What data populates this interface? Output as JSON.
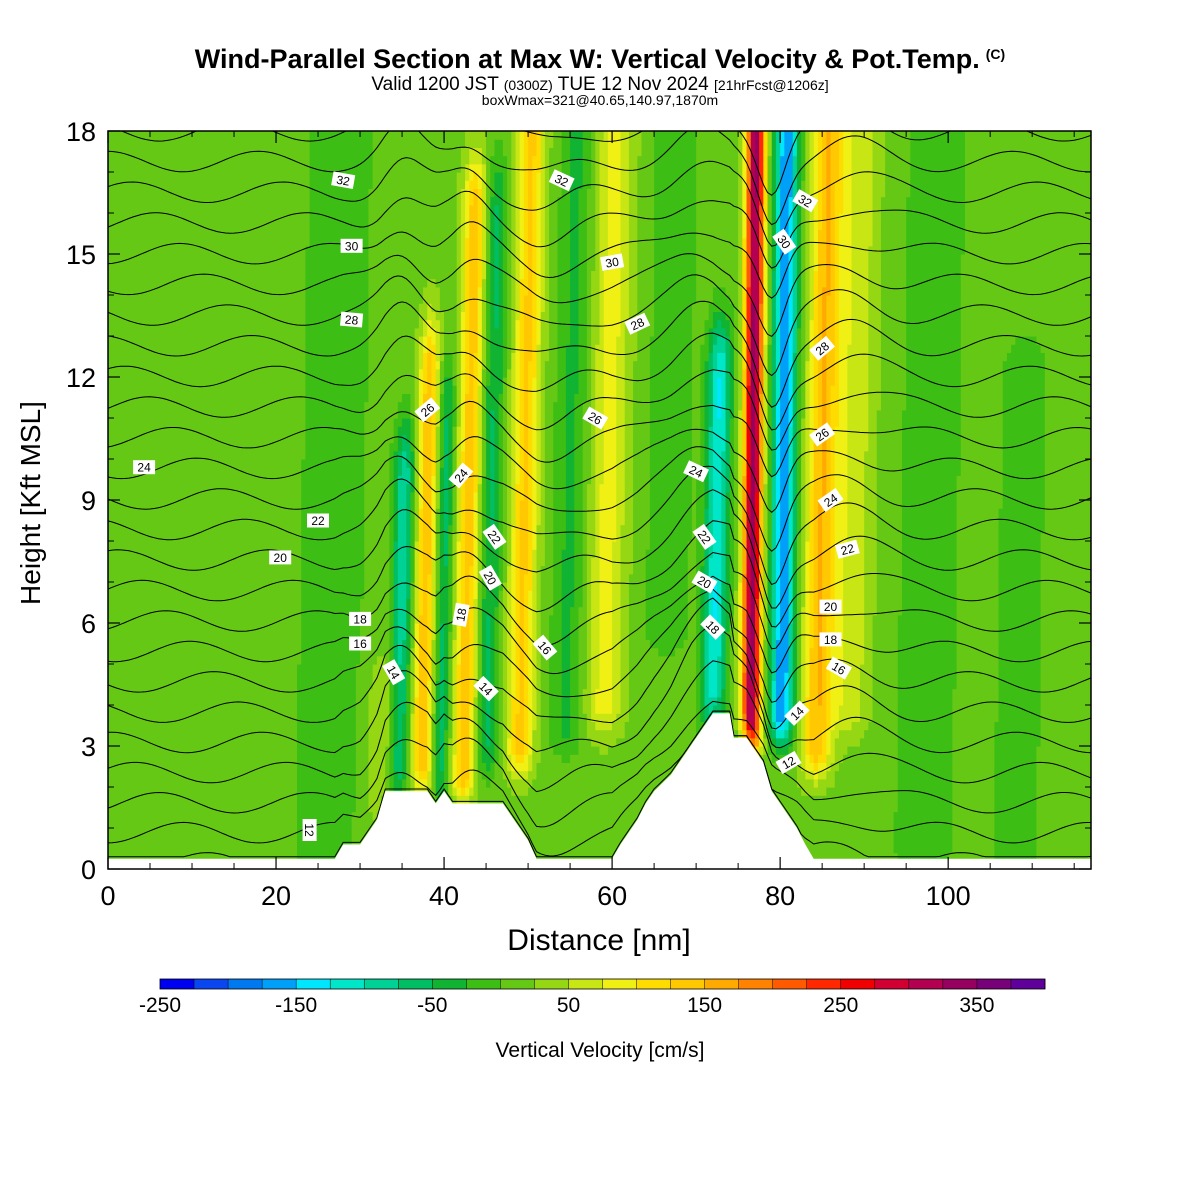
{
  "header": {
    "title": "Wind-Parallel Section at Max W: Vertical Velocity & Pot.Temp.",
    "copyright": "(C)",
    "valid_prefix": "Valid 1200 JST",
    "valid_utc": "(0300Z)",
    "valid_date": "TUE 12 Nov 2024",
    "forecast": "[21hrFcst@1206z]",
    "box_info": "boxWmax=321@40.65,140.97,1870m"
  },
  "chart_data": {
    "type": "heatmap",
    "xlabel": "Distance [nm]",
    "ylabel": "Height [Kft MSL]",
    "xlim": [
      0,
      117
    ],
    "ylim": [
      0,
      18
    ],
    "x_ticks": [
      0,
      20,
      40,
      60,
      80,
      100
    ],
    "y_ticks": [
      0,
      3,
      6,
      9,
      12,
      15,
      18
    ],
    "grid": false,
    "colorbar": {
      "label": "Vertical Velocity [cm/s]",
      "placement": "bottom",
      "min": -250,
      "max": 400,
      "step": 25,
      "tick_labels": [
        "-250",
        "-150",
        "-50",
        "50",
        "150",
        "250",
        "350"
      ],
      "tick_values": [
        -250,
        -150,
        -50,
        50,
        150,
        250,
        350
      ],
      "colors": [
        "#0000f0",
        "#0a46f0",
        "#0078f0",
        "#00a0f8",
        "#00e6ff",
        "#00e6c8",
        "#00d296",
        "#00be64",
        "#10b432",
        "#3cbe14",
        "#64c814",
        "#96d714",
        "#c8e614",
        "#f0f014",
        "#ffdc00",
        "#ffc800",
        "#ffaa00",
        "#ff8200",
        "#ff5a00",
        "#ff2800",
        "#f00000",
        "#d20032",
        "#b40050",
        "#96005f",
        "#780078",
        "#60009a"
      ]
    },
    "terrain_kft": [
      [
        0,
        0.25
      ],
      [
        27,
        0.25
      ],
      [
        28,
        0.6
      ],
      [
        30,
        0.6
      ],
      [
        31,
        0.9
      ],
      [
        32,
        1.2
      ],
      [
        33,
        1.9
      ],
      [
        38,
        1.9
      ],
      [
        39,
        1.6
      ],
      [
        40,
        1.9
      ],
      [
        41,
        1.6
      ],
      [
        42,
        1.6
      ],
      [
        47,
        1.6
      ],
      [
        48,
        1.3
      ],
      [
        49,
        1.0
      ],
      [
        50,
        0.7
      ],
      [
        51,
        0.25
      ],
      [
        60,
        0.25
      ],
      [
        61,
        0.6
      ],
      [
        62,
        0.9
      ],
      [
        63,
        1.2
      ],
      [
        64,
        1.6
      ],
      [
        65,
        1.9
      ],
      [
        67,
        2.3
      ],
      [
        68,
        2.6
      ],
      [
        69,
        2.9
      ],
      [
        70,
        3.2
      ],
      [
        71,
        3.5
      ],
      [
        72,
        3.8
      ],
      [
        74,
        3.8
      ],
      [
        74.5,
        3.2
      ],
      [
        76,
        3.2
      ],
      [
        77,
        2.9
      ],
      [
        78,
        2.6
      ],
      [
        79,
        1.9
      ],
      [
        80,
        1.6
      ],
      [
        81,
        1.3
      ],
      [
        82,
        1.0
      ],
      [
        83,
        0.6
      ],
      [
        84,
        0.25
      ],
      [
        117,
        0.25
      ]
    ],
    "w_features": [
      {
        "x": 34.5,
        "amp": -110,
        "width": 1.2,
        "z0": 1.5,
        "z1": 9.5
      },
      {
        "x": 37.3,
        "amp": 130,
        "width": 1.2,
        "z0": 2.0,
        "z1": 12.0
      },
      {
        "x": 39.5,
        "amp": -75,
        "width": 1.0,
        "z0": 2.0,
        "z1": 11.0
      },
      {
        "x": 42.3,
        "amp": 125,
        "width": 1.4,
        "z0": 2.0,
        "z1": 16.0
      },
      {
        "x": 45.0,
        "amp": -70,
        "width": 1.3,
        "z0": 3.0,
        "z1": 16.0
      },
      {
        "x": 49.0,
        "amp": 115,
        "width": 1.6,
        "z0": 3.0,
        "z1": 18.0
      },
      {
        "x": 54.5,
        "amp": -45,
        "width": 2.0,
        "z0": 3.5,
        "z1": 18.0
      },
      {
        "x": 59.0,
        "amp": 70,
        "width": 2.2,
        "z0": 4.0,
        "z1": 18.0
      },
      {
        "x": 66.5,
        "amp": -40,
        "width": 2.5,
        "z0": 6.0,
        "z1": 18.0
      },
      {
        "x": 72.0,
        "amp": -140,
        "width": 1.4,
        "z0": 3.8,
        "z1": 12.0
      },
      {
        "x": 76.5,
        "amp": 320,
        "width": 1.1,
        "z0": 3.2,
        "z1": 18.0
      },
      {
        "x": 80.2,
        "amp": -190,
        "width": 1.4,
        "z0": 3.8,
        "z1": 18.0
      },
      {
        "x": 84.3,
        "amp": 130,
        "width": 1.8,
        "z0": 3.0,
        "z1": 18.0
      },
      {
        "x": 88.0,
        "amp": 55,
        "width": 2.5,
        "z0": 4.0,
        "z1": 18.0
      },
      {
        "x": 26.0,
        "amp": -35,
        "width": 4.0,
        "z0": 0.5,
        "z1": 18.0
      },
      {
        "x": 33.0,
        "amp": 40,
        "width": 2.5,
        "z0": 0.5,
        "z1": 4.0
      },
      {
        "x": 97.0,
        "amp": -30,
        "width": 4.0,
        "z0": 0.5,
        "z1": 18.0
      },
      {
        "x": 108.0,
        "amp": -25,
        "width": 3.5,
        "z0": 0.5,
        "z1": 12.0
      }
    ],
    "theta_levels": [
      10,
      11,
      12,
      13,
      14,
      15,
      16,
      17,
      18,
      19,
      20,
      21,
      22,
      23,
      24,
      25,
      26,
      27,
      28,
      29,
      30,
      31,
      32,
      33,
      34
    ],
    "theta_labels": [
      {
        "text": "32",
        "x": 28.0,
        "y": 16.8,
        "rot": 10
      },
      {
        "text": "32",
        "x": 54.0,
        "y": 16.8,
        "rot": 25
      },
      {
        "text": "32",
        "x": 83.0,
        "y": 16.3,
        "rot": 30
      },
      {
        "text": "30",
        "x": 29.0,
        "y": 15.2,
        "rot": 0
      },
      {
        "text": "30",
        "x": 60.0,
        "y": 14.8,
        "rot": -10
      },
      {
        "text": "30",
        "x": 80.5,
        "y": 15.3,
        "rot": 55
      },
      {
        "text": "28",
        "x": 29.0,
        "y": 13.4,
        "rot": 5
      },
      {
        "text": "28",
        "x": 63.0,
        "y": 13.3,
        "rot": -25
      },
      {
        "text": "28",
        "x": 85.0,
        "y": 12.7,
        "rot": -40
      },
      {
        "text": "26",
        "x": 38.0,
        "y": 11.2,
        "rot": -40
      },
      {
        "text": "26",
        "x": 58.0,
        "y": 11.0,
        "rot": 30
      },
      {
        "text": "26",
        "x": 85.0,
        "y": 10.6,
        "rot": -35
      },
      {
        "text": "24",
        "x": 4.3,
        "y": 9.8,
        "rot": 0
      },
      {
        "text": "24",
        "x": 42.0,
        "y": 9.6,
        "rot": -50
      },
      {
        "text": "24",
        "x": 70.0,
        "y": 9.7,
        "rot": 25
      },
      {
        "text": "24",
        "x": 86.0,
        "y": 9.0,
        "rot": -35
      },
      {
        "text": "22",
        "x": 25.0,
        "y": 8.5,
        "rot": 0
      },
      {
        "text": "22",
        "x": 46.0,
        "y": 8.1,
        "rot": 55
      },
      {
        "text": "22",
        "x": 71.0,
        "y": 8.1,
        "rot": 55
      },
      {
        "text": "22",
        "x": 88.0,
        "y": 7.8,
        "rot": -15
      },
      {
        "text": "20",
        "x": 20.5,
        "y": 7.6,
        "rot": 0
      },
      {
        "text": "20",
        "x": 45.5,
        "y": 7.1,
        "rot": 60
      },
      {
        "text": "20",
        "x": 71.0,
        "y": 7.0,
        "rot": 30
      },
      {
        "text": "20",
        "x": 86.0,
        "y": 6.4,
        "rot": 0
      },
      {
        "text": "18",
        "x": 30.0,
        "y": 6.1,
        "rot": 0
      },
      {
        "text": "18",
        "x": 42.0,
        "y": 6.2,
        "rot": -80
      },
      {
        "text": "18",
        "x": 72.0,
        "y": 5.9,
        "rot": 45
      },
      {
        "text": "18",
        "x": 86.0,
        "y": 5.6,
        "rot": 0
      },
      {
        "text": "16",
        "x": 30.0,
        "y": 5.5,
        "rot": 0
      },
      {
        "text": "16",
        "x": 52.0,
        "y": 5.4,
        "rot": 50
      },
      {
        "text": "16",
        "x": 87.0,
        "y": 4.9,
        "rot": 30
      },
      {
        "text": "14",
        "x": 34.0,
        "y": 4.8,
        "rot": 60
      },
      {
        "text": "14",
        "x": 45.0,
        "y": 4.4,
        "rot": 45
      },
      {
        "text": "14",
        "x": 82.0,
        "y": 3.8,
        "rot": -45
      },
      {
        "text": "12",
        "x": 24.0,
        "y": 0.95,
        "rot": 90
      },
      {
        "text": "12",
        "x": 81.0,
        "y": 2.6,
        "rot": -30
      }
    ]
  }
}
